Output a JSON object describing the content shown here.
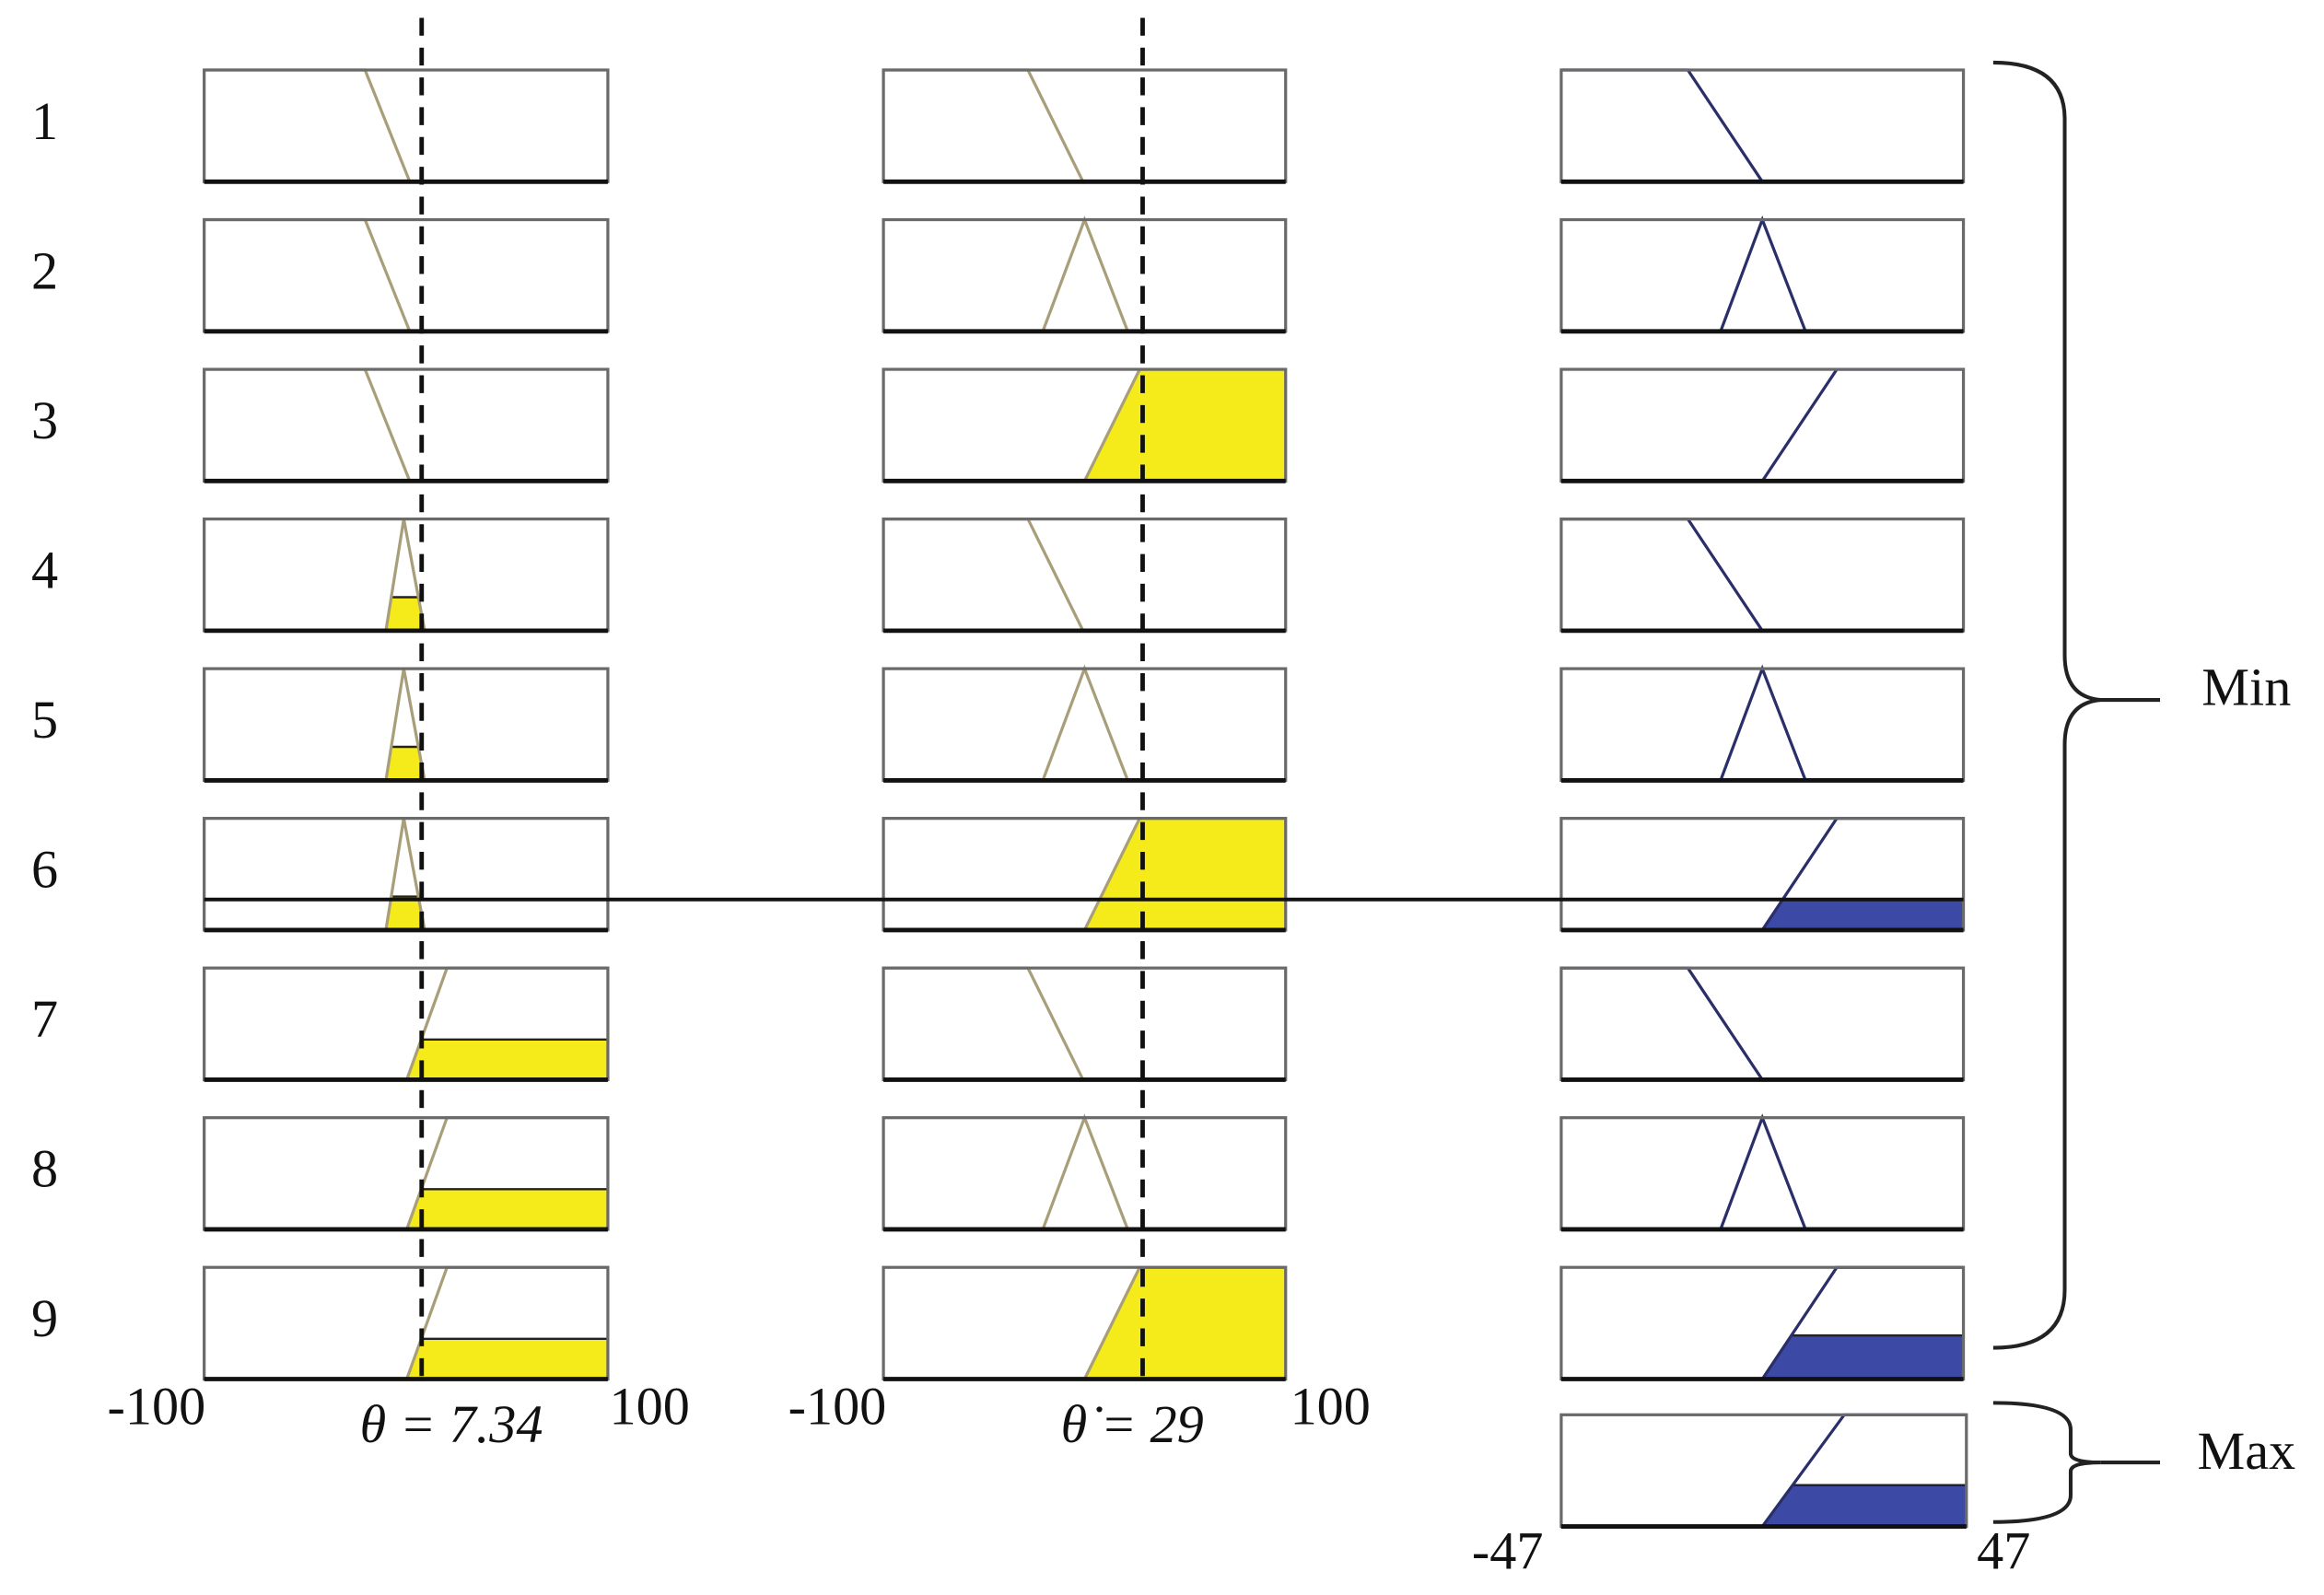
{
  "rules": [
    "1",
    "2",
    "3",
    "4",
    "5",
    "6",
    "7",
    "8",
    "9"
  ],
  "inputs": [
    {
      "min_label": "-100",
      "max_label": "100",
      "value_label": "θ = 7.34"
    },
    {
      "min_label": "-100",
      "max_label": "100",
      "value_label": "θ̇ = 29"
    }
  ],
  "output": {
    "min_label": "-47",
    "max_label": "47"
  },
  "braces": {
    "rules": "Min",
    "aggregate": "Max"
  }
}
